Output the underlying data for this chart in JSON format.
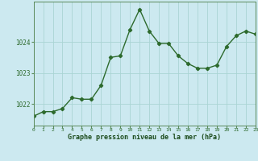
{
  "hours": [
    0,
    1,
    2,
    3,
    4,
    5,
    6,
    7,
    8,
    9,
    10,
    11,
    12,
    13,
    14,
    15,
    16,
    17,
    18,
    19,
    20,
    21,
    22,
    23
  ],
  "pressure": [
    1021.6,
    1021.75,
    1021.75,
    1021.85,
    1022.2,
    1022.15,
    1022.15,
    1022.6,
    1023.5,
    1023.55,
    1024.4,
    1025.05,
    1024.35,
    1023.95,
    1023.95,
    1023.55,
    1023.3,
    1023.15,
    1023.15,
    1023.25,
    1023.85,
    1024.2,
    1024.35,
    1024.25
  ],
  "line_color": "#2d6a2d",
  "marker": "D",
  "marker_size": 2.2,
  "bg_color": "#cce9f0",
  "grid_color": "#aad4d4",
  "xlabel": "Graphe pression niveau de la mer (hPa)",
  "xlabel_color": "#1a4a1a",
  "tick_label_color": "#2d6a2d",
  "yticks": [
    1022,
    1023,
    1024
  ],
  "ylim": [
    1021.3,
    1025.3
  ],
  "xlim": [
    0,
    23
  ],
  "spine_color": "#5a8a5a"
}
